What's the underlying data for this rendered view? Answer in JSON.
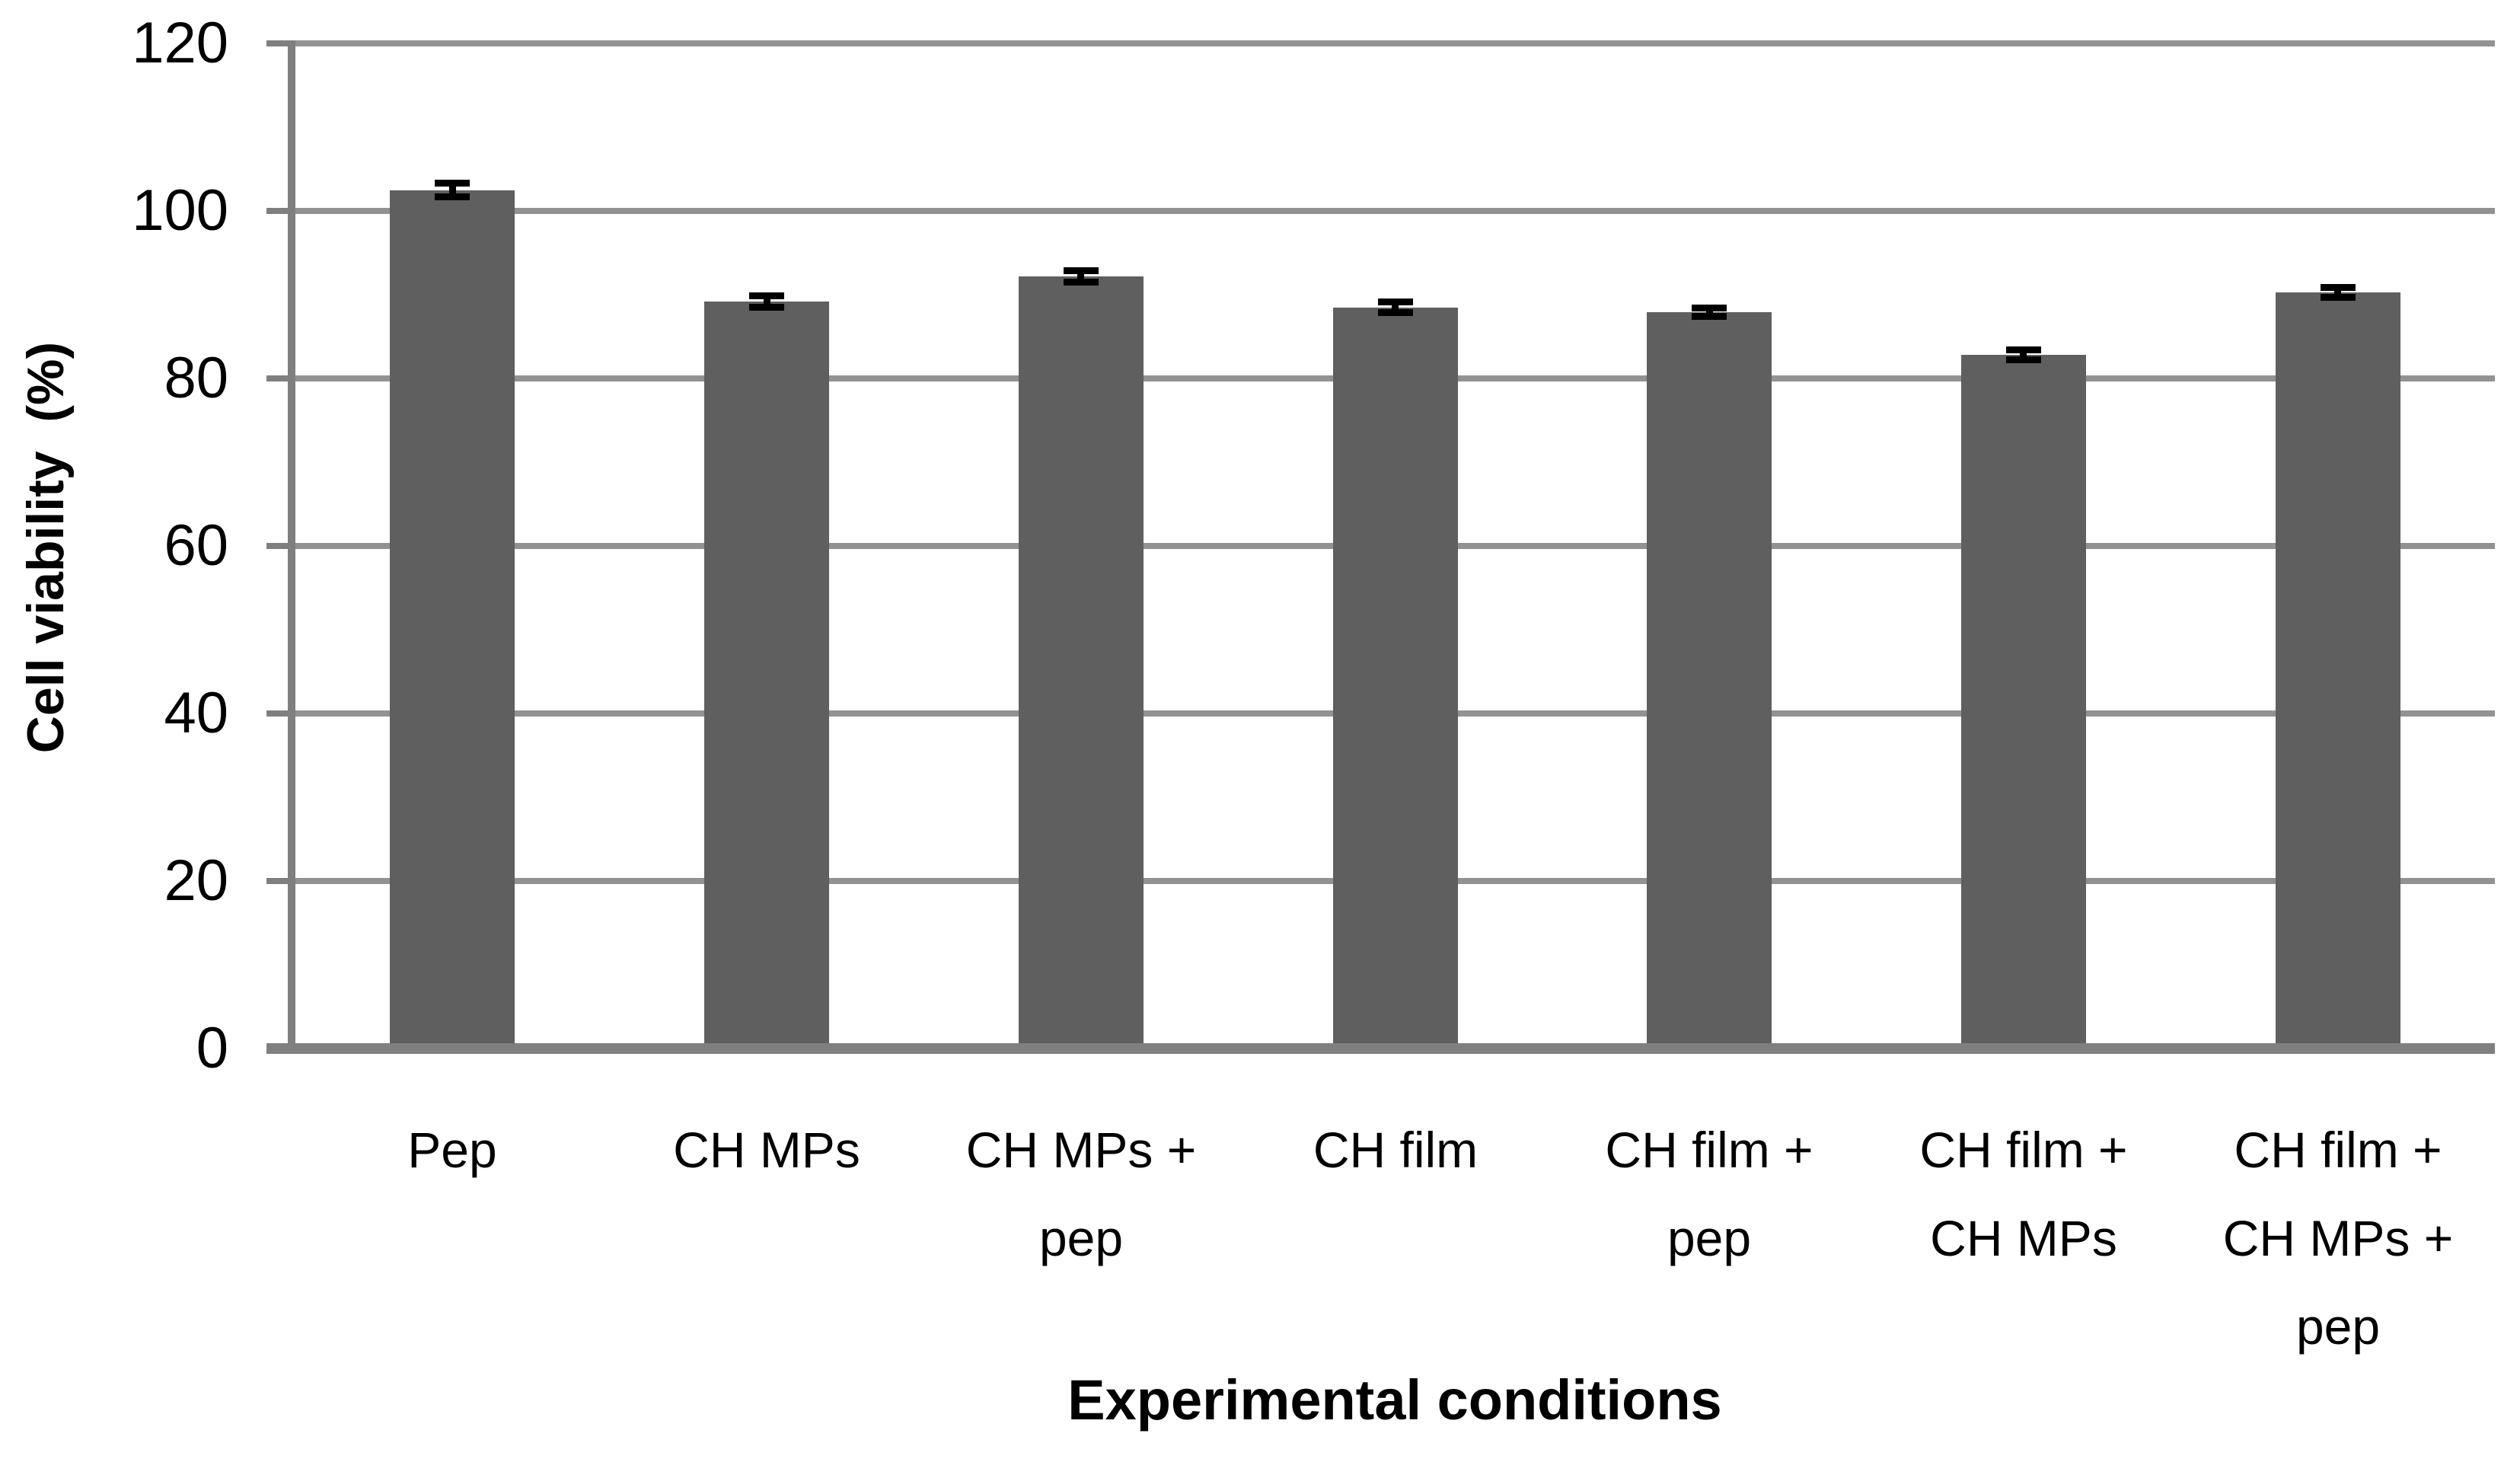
{
  "chart_data": {
    "type": "bar",
    "title": "",
    "xlabel": "Experimental conditions",
    "ylabel": "Cell viability  (%)",
    "categories": [
      "Pep",
      "CH MPs",
      "CH MPs +\npep",
      "CH film",
      "CH film +\npep",
      "CH film +\nCH MPs",
      "CH film +\nCH MPs +\npep"
    ],
    "values": [
      102.5,
      89.2,
      92.2,
      88.5,
      87.9,
      82.8,
      90.3
    ],
    "error_bars": [
      0.8,
      0.7,
      0.7,
      0.6,
      0.5,
      0.6,
      0.6
    ],
    "ylim": [
      0,
      120
    ],
    "ytick_step": 20,
    "ytick_labels": [
      "0",
      "20",
      "40",
      "60",
      "80",
      "100",
      "120"
    ],
    "grid": "horizontal",
    "legend_position": "none",
    "bar_color": "#5f5f5f",
    "gridline_color": "#929292",
    "axis_color": "#7f7f7f",
    "error_bar_color": "#000000",
    "text_color": "#000000"
  }
}
